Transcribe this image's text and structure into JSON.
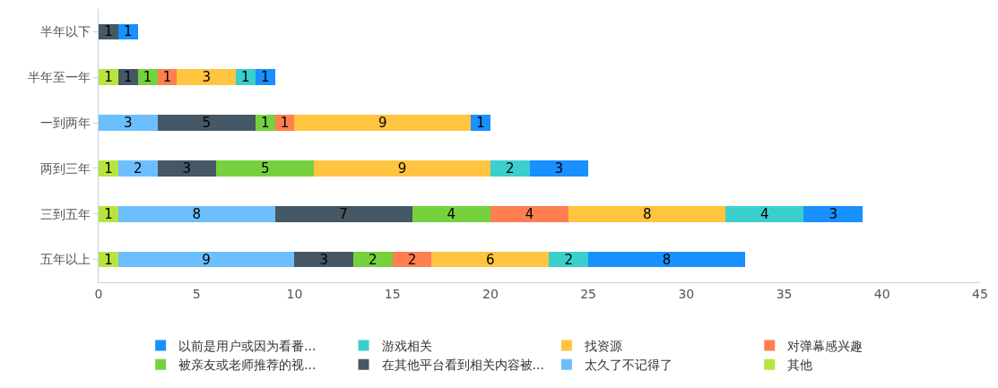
{
  "chart_data": {
    "type": "bar",
    "orientation": "horizontal",
    "stacked": true,
    "data_labels": true,
    "legend": "bottom",
    "categories": [
      "半年以下",
      "半年至一年",
      "一到两年",
      "两到三年",
      "三到五年",
      "五年以上"
    ],
    "xlim": [
      0,
      45
    ],
    "xticks": [
      0,
      5,
      10,
      15,
      20,
      25,
      30,
      35,
      40,
      45
    ],
    "series": [
      {
        "name": "其他",
        "color": "#b8e53d",
        "values": [
          null,
          1,
          null,
          1,
          1,
          1
        ]
      },
      {
        "name": "太久了不记得了",
        "color": "#6cbffc",
        "values": [
          null,
          null,
          3,
          2,
          8,
          9
        ]
      },
      {
        "name": "在其他平台看到相关内容被...",
        "color": "#465865",
        "values": [
          1,
          1,
          5,
          3,
          7,
          3
        ]
      },
      {
        "name": "被亲友或老师推荐的视...",
        "color": "#76d13e",
        "values": [
          null,
          1,
          1,
          5,
          4,
          2
        ]
      },
      {
        "name": "对弹幕感兴趣",
        "color": "#ff7f50",
        "values": [
          null,
          1,
          1,
          null,
          4,
          2
        ]
      },
      {
        "name": "找资源",
        "color": "#ffc440",
        "values": [
          null,
          3,
          9,
          9,
          8,
          6
        ]
      },
      {
        "name": "游戏相关",
        "color": "#3acfcc",
        "values": [
          null,
          1,
          null,
          2,
          4,
          2
        ]
      },
      {
        "name": "以前是用户或因为看番...",
        "color": "#1890ff",
        "values": [
          1,
          1,
          1,
          3,
          3,
          8
        ]
      }
    ]
  }
}
